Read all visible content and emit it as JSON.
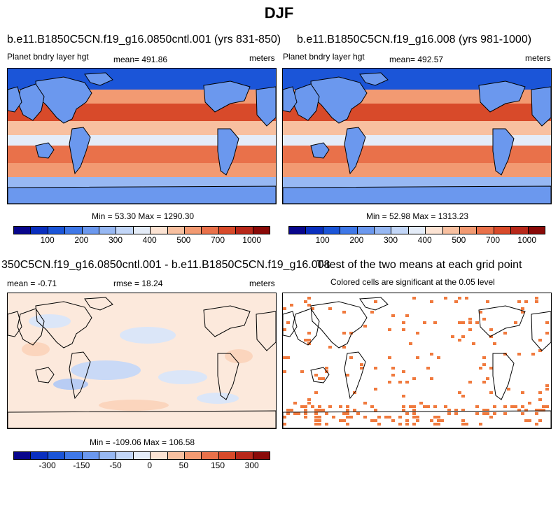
{
  "figure": {
    "title": "DJF"
  },
  "panel1": {
    "title": "b.e11.B1850C5CN.f19_g16.0850cntl.001 (yrs 831-850)",
    "left_label": "Planet bndry layer hgt",
    "center_label": "mean= 491.86",
    "right_label": "meters",
    "minmax": "Min =  53.30 Max = 1290.30"
  },
  "panel2": {
    "title": "b.e11.B1850C5CN.f19_g16.008 (yrs 981-1000)",
    "left_label": "Planet bndry layer hgt",
    "center_label": "mean= 492.57",
    "right_label": "meters",
    "minmax": "Min =  52.98 Max = 1313.23"
  },
  "panel3": {
    "title": "350C5CN.f19_g16.0850cntl.001 - b.e11.B1850C5CN.f19_g16.008",
    "left_label": "mean =  -0.71",
    "center_label": "rmse =  18.24",
    "right_label": "meters",
    "minmax": "Min = -109.06 Max = 106.58"
  },
  "panel4": {
    "title": "T-test of the two means at each grid point",
    "subtitle": "Colored cells are significant at the 0.05 level"
  },
  "colorbar_abs": {
    "colors": [
      "#08068c",
      "#0a2fbf",
      "#1b55d8",
      "#3f78e8",
      "#6b98ee",
      "#97b8f3",
      "#c2d6f8",
      "#e4ecf8",
      "#fce3d3",
      "#f8c0a0",
      "#f29a72",
      "#e9714a",
      "#d84a2a",
      "#b8281a",
      "#8a0a08"
    ],
    "ticks": [
      "100",
      "200",
      "300",
      "400",
      "500",
      "700",
      "1000"
    ]
  },
  "colorbar_diff": {
    "colors": [
      "#08068c",
      "#0a2fbf",
      "#1b55d8",
      "#3f78e8",
      "#6b98ee",
      "#97b8f3",
      "#c2d6f8",
      "#e4ecf8",
      "#fce3d3",
      "#f8c0a0",
      "#f29a72",
      "#e9714a",
      "#d84a2a",
      "#b8281a",
      "#8a0a08"
    ],
    "ticks": [
      "-300",
      "-150",
      "-50",
      "0",
      "50",
      "150",
      "300"
    ]
  },
  "colors": {
    "significant": "#f07a3e",
    "ocean_high": "#e9714a",
    "land_low": "#3f78e8"
  }
}
